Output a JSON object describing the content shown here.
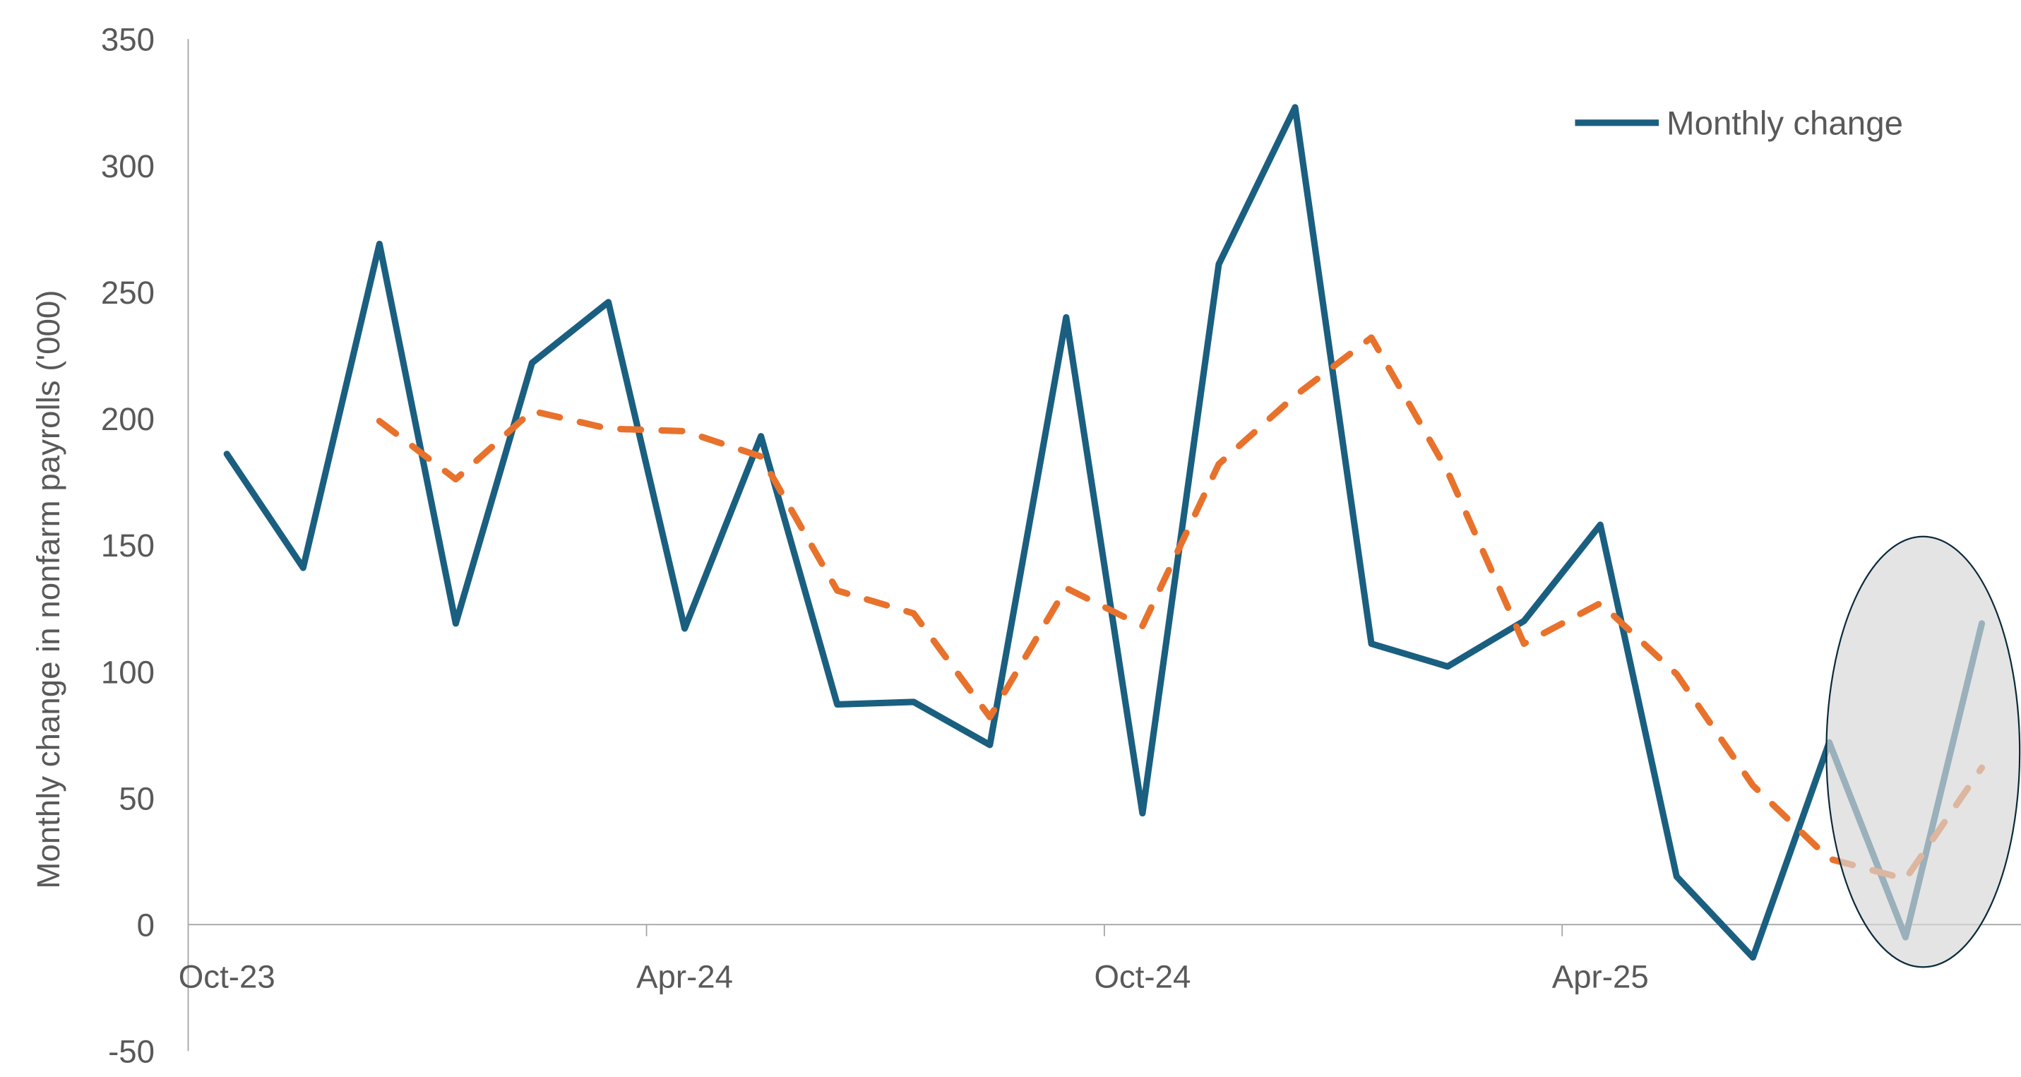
{
  "chart_data": {
    "type": "line",
    "title": "",
    "xlabel": "",
    "ylabel": "Monthly change in nonfarm payrolls ('000)",
    "ylim": [
      -50,
      350
    ],
    "yticks": [
      -50,
      0,
      50,
      100,
      150,
      200,
      250,
      300,
      350
    ],
    "x": [
      "Oct-23",
      "Nov-23",
      "Dec-23",
      "Jan-24",
      "Feb-24",
      "Mar-24",
      "Apr-24",
      "May-24",
      "Jun-24",
      "Jul-24",
      "Aug-24",
      "Sep-24",
      "Oct-24",
      "Nov-24",
      "Dec-24",
      "Jan-25",
      "Feb-25",
      "Mar-25",
      "Apr-25",
      "May-25",
      "Jun-25",
      "Jul-25",
      "Aug-25",
      "Sep-25"
    ],
    "xtick_labels": [
      "Oct-23",
      "Apr-24",
      "Oct-24",
      "Apr-25"
    ],
    "grid": false,
    "legend": "top-right",
    "series": [
      {
        "name": "Monthly change",
        "style": "solid",
        "color": "#1a5f80",
        "values": [
          186,
          141,
          269,
          119,
          222,
          246,
          117,
          193,
          87,
          88,
          71,
          240,
          44,
          261,
          323,
          111,
          102,
          120,
          158,
          19,
          -13,
          72,
          -5,
          119
        ]
      },
      {
        "style": "dashed",
        "color": "#e8722c",
        "values": [
          null,
          null,
          199,
          176,
          203,
          196,
          195,
          185,
          132,
          123,
          82,
          133,
          118,
          182,
          209,
          232,
          179,
          111,
          127,
          99,
          55,
          26,
          18,
          62
        ]
      }
    ],
    "highlight": {
      "shape": "ellipse",
      "covers": [
        "Jul-25",
        "Aug-25",
        "Sep-25"
      ],
      "color": "#d9d9d9"
    }
  }
}
